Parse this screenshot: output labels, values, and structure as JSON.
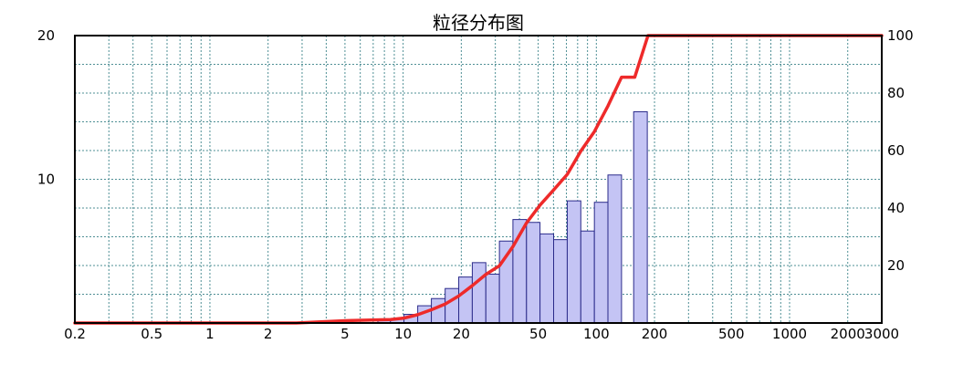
{
  "chart_data": {
    "type": "bar",
    "title": "粒径分布图",
    "x_scale": "log",
    "xlim": [
      0.2,
      3000
    ],
    "x_ticks": [
      {
        "value": 0.2,
        "label": "0.2"
      },
      {
        "value": 0.5,
        "label": "0.5"
      },
      {
        "value": 1,
        "label": "1"
      },
      {
        "value": 2,
        "label": "2"
      },
      {
        "value": 5,
        "label": "5"
      },
      {
        "value": 10,
        "label": "10"
      },
      {
        "value": 20,
        "label": "20"
      },
      {
        "value": 50,
        "label": "50"
      },
      {
        "value": 100,
        "label": "100"
      },
      {
        "value": 200,
        "label": "200"
      },
      {
        "value": 500,
        "label": "500"
      },
      {
        "value": 1000,
        "label": "1000"
      },
      {
        "value": 2000,
        "label": "2000"
      },
      {
        "value": 3000,
        "label": "3000"
      }
    ],
    "y_left": {
      "lim": [
        0,
        20
      ],
      "ticks": [
        {
          "value": 10,
          "label": "10"
        },
        {
          "value": 20,
          "label": "20"
        }
      ]
    },
    "y_right": {
      "lim": [
        0,
        100
      ],
      "ticks": [
        {
          "value": 20,
          "label": "20"
        },
        {
          "value": 40,
          "label": "40"
        },
        {
          "value": 60,
          "label": "60"
        },
        {
          "value": 80,
          "label": "80"
        },
        {
          "value": 100,
          "label": "100"
        }
      ]
    },
    "grid": true,
    "histogram": {
      "axis": "left",
      "color": "#c4c4f4",
      "edge_color": "#2b2b8a",
      "bins": [
        {
          "x0": 7.4,
          "x1": 8.6,
          "value": 0.2
        },
        {
          "x0": 8.6,
          "x1": 10.1,
          "value": 0.3
        },
        {
          "x0": 10.1,
          "x1": 11.9,
          "value": 0.6
        },
        {
          "x0": 11.9,
          "x1": 14.0,
          "value": 1.2
        },
        {
          "x0": 14.0,
          "x1": 16.5,
          "value": 1.7
        },
        {
          "x0": 16.5,
          "x1": 19.4,
          "value": 2.4
        },
        {
          "x0": 19.4,
          "x1": 22.8,
          "value": 3.2
        },
        {
          "x0": 22.8,
          "x1": 26.8,
          "value": 4.2
        },
        {
          "x0": 26.8,
          "x1": 31.5,
          "value": 3.4
        },
        {
          "x0": 31.5,
          "x1": 37.0,
          "value": 5.7
        },
        {
          "x0": 37.0,
          "x1": 43.5,
          "value": 7.2
        },
        {
          "x0": 43.5,
          "x1": 51.1,
          "value": 7.0
        },
        {
          "x0": 51.1,
          "x1": 60.1,
          "value": 6.2
        },
        {
          "x0": 60.1,
          "x1": 70.7,
          "value": 5.8
        },
        {
          "x0": 70.7,
          "x1": 83.1,
          "value": 8.5
        },
        {
          "x0": 83.1,
          "x1": 97.7,
          "value": 6.4
        },
        {
          "x0": 97.7,
          "x1": 114.8,
          "value": 8.4
        },
        {
          "x0": 114.8,
          "x1": 135.0,
          "value": 10.3
        },
        {
          "x0": 156.0,
          "x1": 183.5,
          "value": 14.7
        }
      ]
    },
    "cumulative": {
      "axis": "right",
      "color": "#ee2a2a",
      "points": [
        [
          0.2,
          0
        ],
        [
          2.8,
          0
        ],
        [
          5,
          0.8
        ],
        [
          8.6,
          1.2
        ],
        [
          10.1,
          1.7
        ],
        [
          11.9,
          2.9
        ],
        [
          14.0,
          4.6
        ],
        [
          16.5,
          6.6
        ],
        [
          19.4,
          9.4
        ],
        [
          22.8,
          13.0
        ],
        [
          26.8,
          16.9
        ],
        [
          31.5,
          19.9
        ],
        [
          37.0,
          26.6
        ],
        [
          43.5,
          34.8
        ],
        [
          51.1,
          41.0
        ],
        [
          60.1,
          46.3
        ],
        [
          70.7,
          51.7
        ],
        [
          83.1,
          59.8
        ],
        [
          97.7,
          66.6
        ],
        [
          114.8,
          75.5
        ],
        [
          135.0,
          85.5
        ],
        [
          158.0,
          85.5
        ],
        [
          185.0,
          100
        ],
        [
          3000,
          100
        ]
      ]
    }
  }
}
